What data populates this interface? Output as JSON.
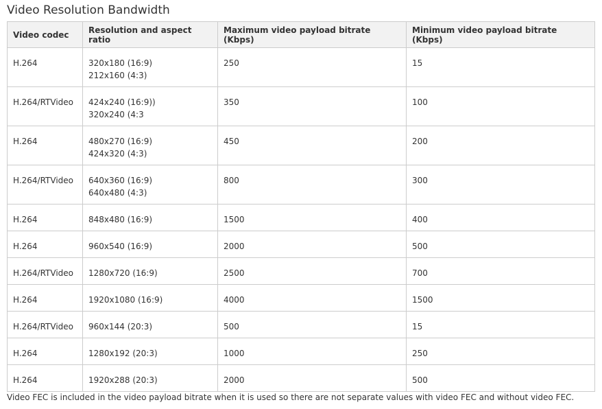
{
  "title": "Video Resolution Bandwidth",
  "headers": {
    "codec": "Video codec",
    "resolution": "Resolution and aspect ratio",
    "max": "Maximum video payload bitrate (Kbps)",
    "min": "Minimum video payload bitrate (Kbps)"
  },
  "rows": [
    {
      "codec": "H.264",
      "res1": "320x180 (16:9)",
      "res2": "212x160 (4:3)",
      "max": "250",
      "min": "15"
    },
    {
      "codec": "H.264/RTVideo",
      "res1": "424x240 (16:9))",
      "res2": "320x240 (4:3",
      "max": "350",
      "min": "100"
    },
    {
      "codec": "H.264",
      "res1": "480x270 (16:9)",
      "res2": "424x320 (4:3)",
      "max": "450",
      "min": "200"
    },
    {
      "codec": "H.264/RTVideo",
      "res1": "640x360 (16:9)",
      "res2": "640x480 (4:3)",
      "max": "800",
      "min": "300"
    },
    {
      "codec": "H.264",
      "res1": "848x480 (16:9)",
      "max": "1500",
      "min": "400"
    },
    {
      "codec": "H.264",
      "res1": "960x540 (16:9)",
      "max": "2000",
      "min": "500"
    },
    {
      "codec": "H.264/RTVideo",
      "res1": "1280x720 (16:9)",
      "max": "2500",
      "min": "700"
    },
    {
      "codec": "H.264",
      "res1": "1920x1080 (16:9)",
      "max": "4000",
      "min": "1500"
    },
    {
      "codec": "H.264/RTVideo",
      "res1": "960x144 (20:3)",
      "max": "500",
      "min": "15"
    },
    {
      "codec": "H.264",
      "res1": "1280x192 (20:3)",
      "max": "1000",
      "min": "250"
    },
    {
      "codec": "H.264",
      "res1": "1920x288 (20:3)",
      "max": "2000",
      "min": "500"
    }
  ],
  "footnote": "Video FEC is included in the video payload bitrate when it is used so there are not separate values with video FEC and without video FEC."
}
